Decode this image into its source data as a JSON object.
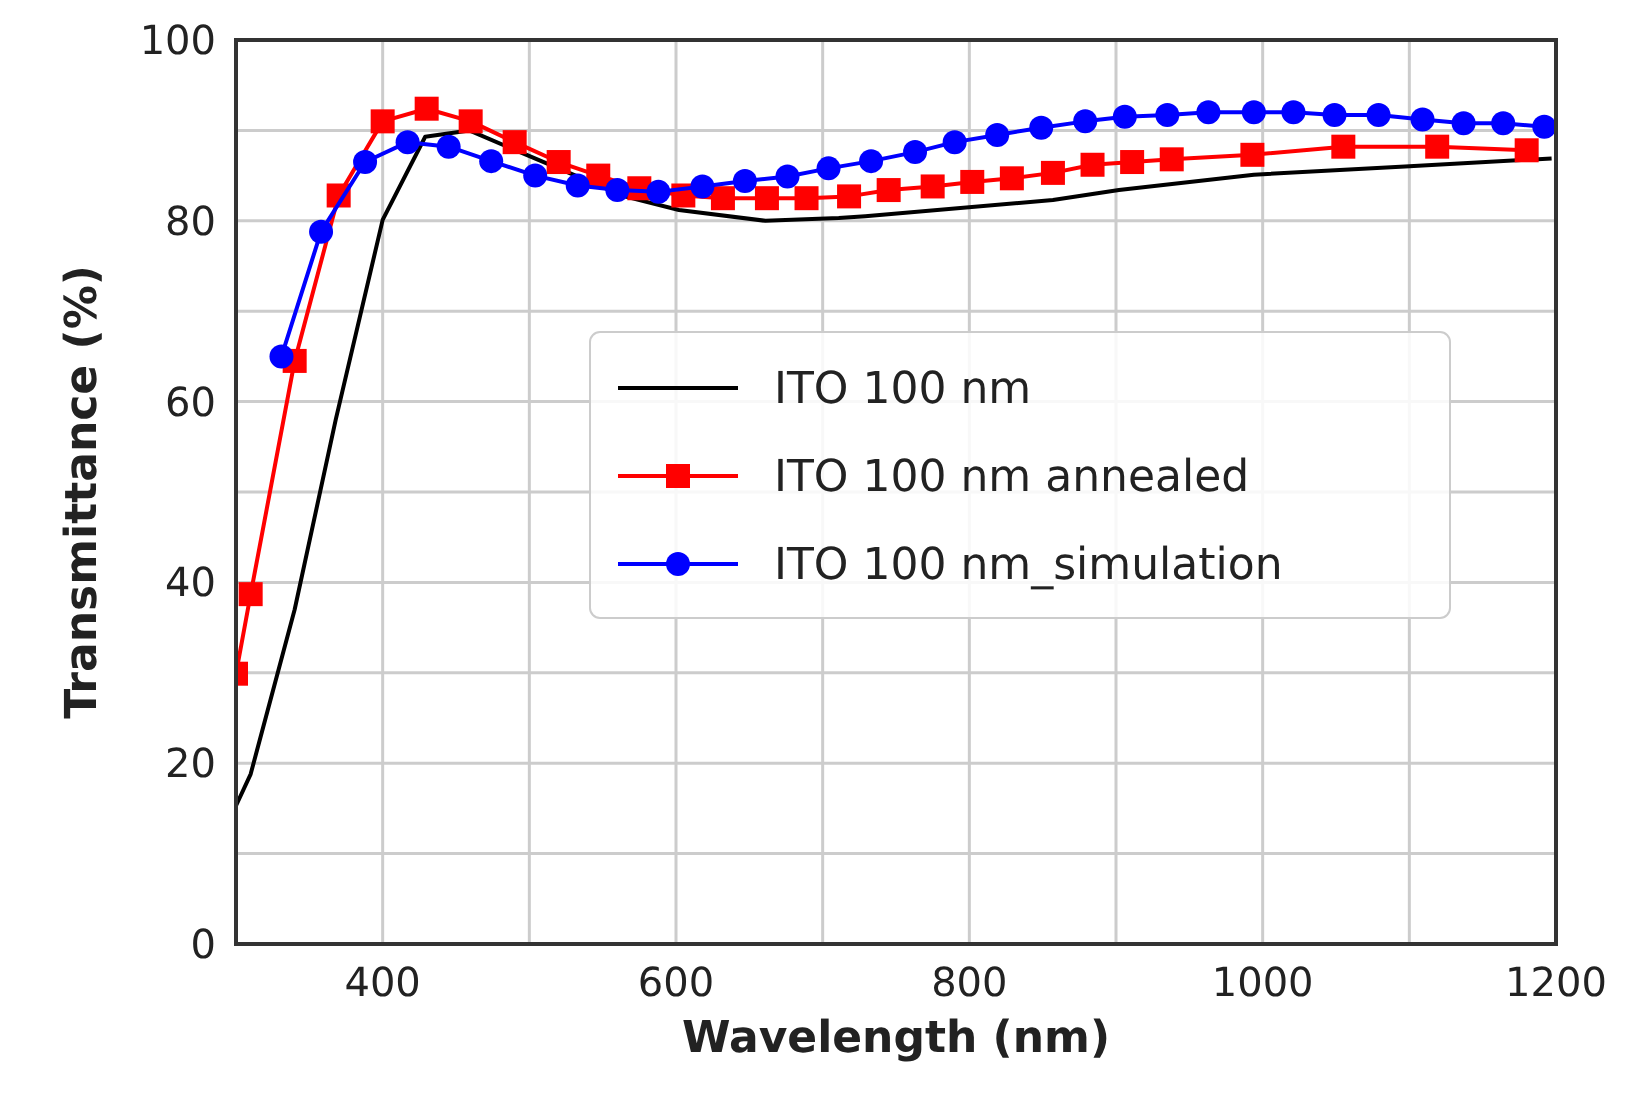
{
  "chart_data": {
    "type": "line",
    "xlabel": "Wavelength (nm)",
    "ylabel": "Transmittance (%)",
    "xlim": [
      300,
      1200
    ],
    "ylim": [
      0,
      100
    ],
    "xticks": [
      {
        "value": 300,
        "label": null
      },
      400,
      {
        "value": 500,
        "label": null
      },
      600,
      {
        "value": 700,
        "label": null
      },
      800,
      {
        "value": 900,
        "label": null
      },
      1000,
      {
        "value": 1100,
        "label": null
      },
      1200
    ],
    "yticks": [
      0,
      {
        "value": 10,
        "label": null
      },
      20,
      {
        "value": 30,
        "label": null
      },
      40,
      {
        "value": 50,
        "label": null
      },
      60,
      {
        "value": 70,
        "label": null
      },
      80,
      {
        "value": 90,
        "label": null
      },
      100
    ],
    "grid": true,
    "legend": "center",
    "series": [
      {
        "name": "ITO 100 nm",
        "color": "#000000",
        "marker": "none",
        "x": [
          300,
          310,
          340,
          368,
          400,
          429,
          459,
          511,
          565,
          602,
          661,
          711,
          729,
          857,
          902,
          994,
          1097,
          1197
        ],
        "values": [
          15.3,
          18.8,
          37,
          58,
          80.1,
          89.3,
          90,
          86.4,
          82.7,
          81.2,
          80,
          80.3,
          80.5,
          82.3,
          83.4,
          85.1,
          86,
          86.9
        ]
      },
      {
        "name": "ITO 100 nm annealed",
        "color": "#ff0000",
        "marker": "square",
        "x": [
          300,
          310,
          340,
          370,
          400,
          430,
          460,
          490,
          520,
          547,
          575,
          605,
          632,
          662,
          689,
          718,
          745,
          775,
          802,
          829,
          857,
          884,
          911,
          938,
          993,
          1055,
          1119,
          1180
        ],
        "values": [
          29.9,
          38.7,
          64.5,
          82.8,
          91,
          92.4,
          91,
          88.7,
          86.5,
          85,
          83.6,
          82.8,
          82.5,
          82.5,
          82.5,
          82.7,
          83.4,
          83.8,
          84.3,
          84.7,
          85.3,
          86.2,
          86.5,
          86.8,
          87.3,
          88.2,
          88.2,
          87.8
        ]
      },
      {
        "name": "ITO 100 nm_simulation",
        "color": "#0000ff",
        "marker": "circle",
        "x": [
          331,
          358,
          388,
          417,
          445,
          474,
          504,
          533,
          560,
          588,
          618,
          647,
          676,
          704,
          733,
          763,
          790,
          819,
          849,
          879,
          906,
          935,
          963,
          994,
          1021,
          1049,
          1079,
          1109,
          1137,
          1164,
          1192
        ],
        "values": [
          65,
          78.8,
          86.5,
          88.7,
          88.2,
          86.6,
          85,
          83.9,
          83.4,
          83.2,
          83.8,
          84.4,
          84.9,
          85.8,
          86.6,
          87.6,
          88.7,
          89.5,
          90.3,
          91,
          91.5,
          91.7,
          92,
          92,
          92,
          91.7,
          91.7,
          91.2,
          90.8,
          90.8,
          90.4
        ]
      }
    ]
  }
}
